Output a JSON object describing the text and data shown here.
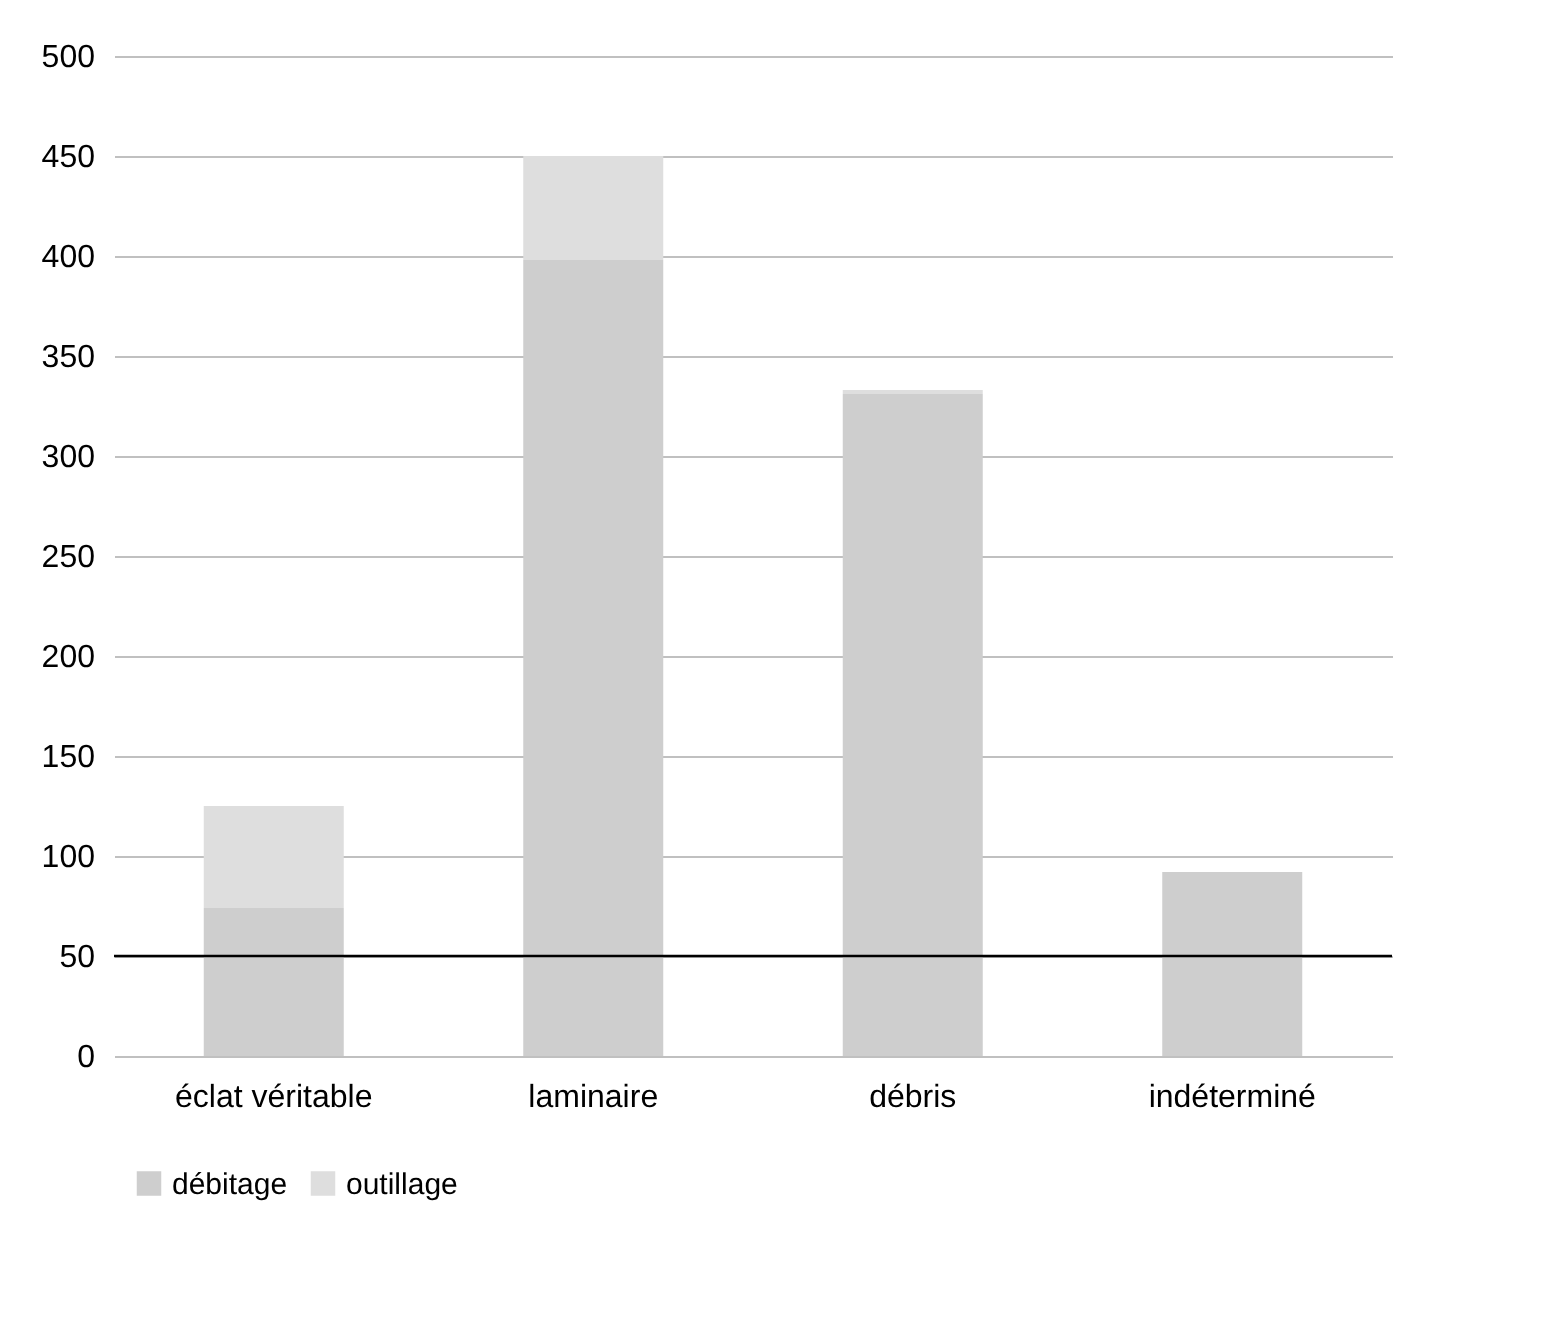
{
  "chart_data": {
    "type": "bar",
    "stacked": true,
    "categories": [
      "éclat véritable",
      "laminaire",
      "débris",
      "indéterminé"
    ],
    "series": [
      {
        "name": "débitage",
        "color": "#cecece",
        "values": [
          74,
          398,
          331,
          92
        ]
      },
      {
        "name": "outillage",
        "color": "#dedede",
        "values": [
          51,
          52,
          2,
          0
        ]
      }
    ],
    "ylim": [
      0,
      500
    ],
    "yticks": [
      0,
      50,
      100,
      150,
      200,
      250,
      300,
      350,
      400,
      450,
      500
    ],
    "grid": "y",
    "legend": "bottom",
    "ref_lines": [
      {
        "axis": "y",
        "value": 50,
        "label": null,
        "color": "#000000"
      }
    ]
  }
}
